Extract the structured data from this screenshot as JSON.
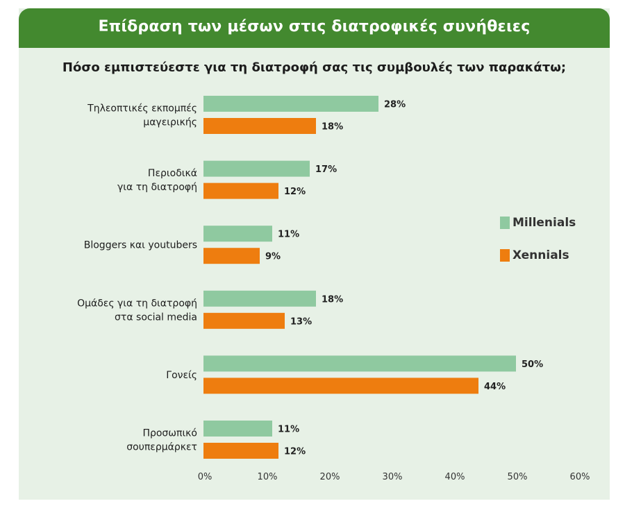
{
  "header": {
    "title": "Επίδραση των μέσων στις διατροφικές συνήθειες"
  },
  "question": "Πόσο εμπιστεύεστε για τη διατροφή σας τις συμβουλές των παρακάτω;",
  "legend": [
    {
      "label": "Millenials",
      "color": "#8fc9a0"
    },
    {
      "label": "Xennials",
      "color": "#ee7d0f"
    }
  ],
  "chart_data": {
    "type": "bar",
    "orientation": "horizontal",
    "categories": [
      [
        "Τηλεοπτικές εκπομπές",
        "μαγειρικής"
      ],
      [
        "Περιοδικά",
        "για τη διατροφή"
      ],
      [
        "Bloggers και youtubers"
      ],
      [
        "Ομάδες για τη διατροφή",
        "στα social media"
      ],
      [
        "Γονείς"
      ],
      [
        "Προσωπικό",
        "σουπερμάρκετ"
      ]
    ],
    "series": [
      {
        "name": "Millenials",
        "values": [
          28,
          17,
          11,
          18,
          50,
          11
        ],
        "color": "#8fc9a0"
      },
      {
        "name": "Xennials",
        "values": [
          18,
          12,
          9,
          13,
          44,
          12
        ],
        "color": "#ee7d0f"
      }
    ],
    "value_suffix": "%",
    "xlim": [
      0,
      60
    ],
    "xticks": [
      0,
      10,
      20,
      30,
      40,
      50,
      60
    ],
    "xtick_labels": [
      "0%",
      "10%",
      "20%",
      "30%",
      "40%",
      "50%",
      "60%"
    ],
    "grid": false,
    "legend_position": "right"
  }
}
